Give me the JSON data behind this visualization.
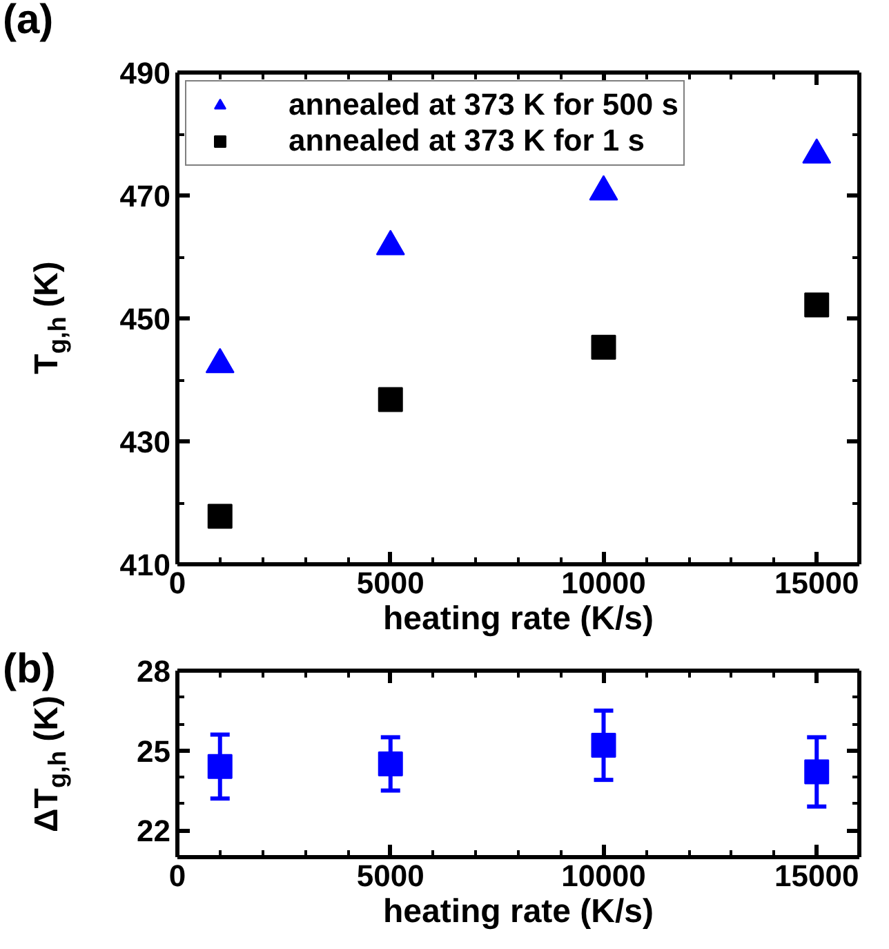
{
  "chart_data": [
    {
      "type": "scatter",
      "annotations": [
        "(a)"
      ],
      "xlabel": "heating rate (K/s)",
      "ylabel": "T$_{g,h}$ (K)",
      "x": [
        1000,
        5000,
        10000,
        15000
      ],
      "series": [
        {
          "name": "annealed at 373 K for 500 s",
          "color": "#0000ff",
          "marker": "triangle",
          "values": [
            442.5,
            461.7,
            470.6,
            476.6
          ]
        },
        {
          "name": "annealed at 373 K for 1 s",
          "color": "#000000",
          "marker": "square",
          "values": [
            417.8,
            436.8,
            445.3,
            452.2
          ]
        }
      ],
      "xlim": [
        0,
        16000
      ],
      "xticks": [
        0,
        5000,
        10000,
        15000
      ],
      "ylim": [
        410,
        490
      ],
      "yticks": [
        410,
        430,
        450,
        470,
        490
      ],
      "grid": false,
      "legend": "top left"
    },
    {
      "type": "scatter",
      "annotations": [
        "(b)"
      ],
      "xlabel": "heating rate (K/s)",
      "ylabel": "ΔT$_{g,h}$ (K)",
      "x": [
        1000,
        5000,
        10000,
        15000
      ],
      "series": [
        {
          "color": "#0000ff",
          "marker": "square",
          "values": [
            24.4,
            24.5,
            25.2,
            24.2
          ],
          "errors": [
            [
              23.2,
              25.6
            ],
            [
              23.5,
              25.5
            ],
            [
              23.9,
              26.5
            ],
            [
              22.9,
              25.5
            ]
          ]
        }
      ],
      "xlim": [
        0,
        16000
      ],
      "xticks": [
        0,
        5000,
        10000,
        15000
      ],
      "ylim": [
        21,
        28
      ],
      "yticks": [
        22,
        25,
        28
      ],
      "grid": false
    }
  ]
}
